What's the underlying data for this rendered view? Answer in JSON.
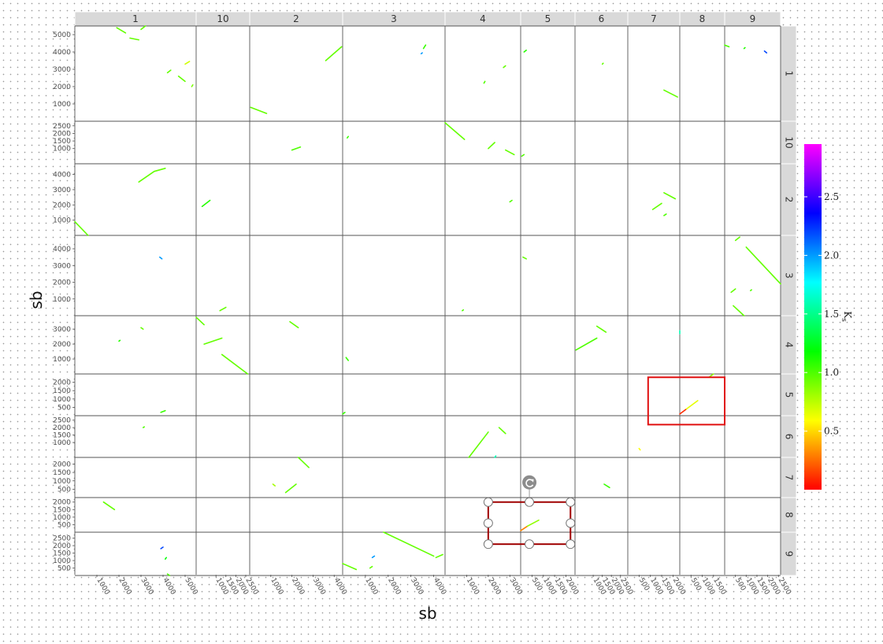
{
  "chart_data": {
    "type": "scatter",
    "title": "",
    "xlabel": "sb",
    "ylabel": "sb",
    "grid": false,
    "legend_position": "right",
    "columns": [
      {
        "label": "1",
        "range": [
          0,
          5500
        ],
        "ticks": [
          1000,
          2000,
          3000,
          4000,
          5000
        ]
      },
      {
        "label": "10",
        "range": [
          0,
          2700
        ],
        "ticks": [
          1000,
          1500,
          2000,
          2500
        ]
      },
      {
        "label": "2",
        "range": [
          0,
          4400
        ],
        "ticks": [
          1000,
          2000,
          3000,
          4000
        ]
      },
      {
        "label": "3",
        "range": [
          0,
          4500
        ],
        "ticks": [
          1000,
          2000,
          3000,
          4000
        ]
      },
      {
        "label": "4",
        "range": [
          0,
          3500
        ],
        "ticks": [
          1000,
          2000,
          3000
        ]
      },
      {
        "label": "5",
        "range": [
          0,
          2400
        ],
        "ticks": [
          500,
          1000,
          1500,
          2000
        ]
      },
      {
        "label": "6",
        "range": [
          0,
          2900
        ],
        "ticks": [
          1000,
          1500,
          2000,
          2500
        ]
      },
      {
        "label": "7",
        "range": [
          0,
          2300
        ],
        "ticks": [
          500,
          1000,
          1500,
          2000
        ]
      },
      {
        "label": "8",
        "range": [
          0,
          2000
        ],
        "ticks": [
          500,
          1000,
          1500,
          2000
        ]
      },
      {
        "label": "9",
        "range": [
          0,
          2600
        ],
        "ticks": [
          500,
          1000,
          1500,
          2000,
          2500
        ]
      }
    ],
    "rows": [
      {
        "label": "1",
        "range": [
          0,
          5500
        ],
        "ticks": [
          1000,
          2000,
          3000,
          4000,
          5000
        ]
      },
      {
        "label": "10",
        "range": [
          0,
          2800
        ],
        "ticks": [
          1000,
          1500,
          2000,
          2500
        ]
      },
      {
        "label": "2",
        "range": [
          0,
          4700
        ],
        "ticks": [
          1000,
          2000,
          3000,
          4000
        ]
      },
      {
        "label": "3",
        "range": [
          0,
          4800
        ],
        "ticks": [
          1000,
          2000,
          3000,
          4000
        ]
      },
      {
        "label": "4",
        "range": [
          0,
          3900
        ],
        "ticks": [
          1000,
          2000,
          3000
        ]
      },
      {
        "label": "5",
        "range": [
          0,
          2500
        ],
        "ticks": [
          500,
          1000,
          1500,
          2000
        ]
      },
      {
        "label": "6",
        "range": [
          0,
          2800
        ],
        "ticks": [
          1000,
          1500,
          2000,
          2500
        ]
      },
      {
        "label": "7",
        "range": [
          0,
          2400
        ],
        "ticks": [
          500,
          1000,
          1500,
          2000
        ]
      },
      {
        "label": "8",
        "range": [
          0,
          2300
        ],
        "ticks": [
          500,
          1000,
          1500,
          2000
        ]
      },
      {
        "label": "9",
        "range": [
          0,
          2900
        ],
        "ticks": [
          500,
          1000,
          1500,
          2000,
          2500
        ]
      }
    ],
    "legend": {
      "title": "Ks",
      "ticks": [
        0.5,
        1.0,
        1.5,
        2.0,
        2.5
      ],
      "tick_labels": [
        "0.5",
        "1.0",
        "1.5",
        "2.0",
        "2.5"
      ],
      "range": [
        0,
        2.95
      ],
      "colors": [
        "#ff0000",
        "#ffff00",
        "#00ff00",
        "#00ffff",
        "#0000ff",
        "#ff00ff"
      ]
    },
    "segments": [
      {
        "col": "1",
        "row": "1",
        "x0": 1900,
        "y0": 5400,
        "x1": 2300,
        "y1": 5100,
        "ks": 0.95
      },
      {
        "col": "1",
        "row": "1",
        "x0": 2500,
        "y0": 4800,
        "x1": 2900,
        "y1": 4700,
        "ks": 0.95
      },
      {
        "col": "1",
        "row": "1",
        "x0": 3000,
        "y0": 5300,
        "x1": 3200,
        "y1": 5500,
        "ks": 0.95
      },
      {
        "col": "1",
        "row": "1",
        "x0": 4200,
        "y0": 2800,
        "x1": 4350,
        "y1": 2950,
        "ks": 0.95
      },
      {
        "col": "1",
        "row": "1",
        "x0": 4700,
        "y0": 2600,
        "x1": 5000,
        "y1": 2300,
        "ks": 0.95
      },
      {
        "col": "1",
        "row": "1",
        "x0": 5000,
        "y0": 3300,
        "x1": 5200,
        "y1": 3450,
        "ks": 0.7
      },
      {
        "col": "1",
        "row": "1",
        "x0": 5300,
        "y0": 2000,
        "x1": 5350,
        "y1": 2100,
        "ks": 0.9
      },
      {
        "col": "2",
        "row": "1",
        "x0": 50,
        "y0": 800,
        "x1": 800,
        "y1": 450,
        "ks": 0.95
      },
      {
        "col": "2",
        "row": "1",
        "x0": 3600,
        "y0": 3500,
        "x1": 4350,
        "y1": 4300,
        "ks": 0.95
      },
      {
        "col": "3",
        "row": "1",
        "x0": 3550,
        "y0": 4200,
        "x1": 3650,
        "y1": 4400,
        "ks": 1.05
      },
      {
        "col": "3",
        "row": "1",
        "x0": 3450,
        "y0": 3900,
        "x1": 3500,
        "y1": 3950,
        "ks": 2.0
      },
      {
        "col": "4",
        "row": "1",
        "x0": 1800,
        "y0": 2200,
        "x1": 1850,
        "y1": 2300,
        "ks": 1.0
      },
      {
        "col": "4",
        "row": "1",
        "x0": 2700,
        "y0": 3100,
        "x1": 2800,
        "y1": 3200,
        "ks": 0.95
      },
      {
        "col": "5",
        "row": "1",
        "x0": 150,
        "y0": 4000,
        "x1": 250,
        "y1": 4100,
        "ks": 1.1
      },
      {
        "col": "6",
        "row": "1",
        "x0": 1500,
        "y0": 3300,
        "x1": 1550,
        "y1": 3350,
        "ks": 0.95
      },
      {
        "col": "7",
        "row": "1",
        "x0": 1600,
        "y0": 1800,
        "x1": 2200,
        "y1": 1400,
        "ks": 0.95
      },
      {
        "col": "9",
        "row": "1",
        "x0": 0,
        "y0": 4400,
        "x1": 200,
        "y1": 4300,
        "ks": 1.0
      },
      {
        "col": "9",
        "row": "1",
        "x0": 900,
        "y0": 4200,
        "x1": 950,
        "y1": 4250,
        "ks": 1.1
      },
      {
        "col": "9",
        "row": "1",
        "x0": 1850,
        "y0": 4050,
        "x1": 1950,
        "y1": 3950,
        "ks": 2.2
      },
      {
        "col": "2",
        "row": "10",
        "x0": 2000,
        "y0": 900,
        "x1": 2400,
        "y1": 1100,
        "ks": 1.0
      },
      {
        "col": "3",
        "row": "10",
        "x0": 200,
        "y0": 1700,
        "x1": 250,
        "y1": 1800,
        "ks": 1.05
      },
      {
        "col": "4",
        "row": "10",
        "x0": 0,
        "y0": 2700,
        "x1": 900,
        "y1": 1600,
        "ks": 0.95
      },
      {
        "col": "4",
        "row": "10",
        "x0": 2000,
        "y0": 1000,
        "x1": 2300,
        "y1": 1400,
        "ks": 0.95
      },
      {
        "col": "4",
        "row": "10",
        "x0": 2800,
        "y0": 900,
        "x1": 3200,
        "y1": 600,
        "ks": 0.95
      },
      {
        "col": "5",
        "row": "10",
        "x0": 50,
        "y0": 500,
        "x1": 150,
        "y1": 600,
        "ks": 1.0
      },
      {
        "col": "1",
        "row": "2",
        "x0": 2900,
        "y0": 3500,
        "x1": 3600,
        "y1": 4200,
        "ks": 0.95
      },
      {
        "col": "1",
        "row": "2",
        "x0": 3600,
        "y0": 4200,
        "x1": 4100,
        "y1": 4400,
        "ks": 0.95
      },
      {
        "col": "10",
        "row": "2",
        "x0": 300,
        "y0": 1900,
        "x1": 700,
        "y1": 2300,
        "ks": 1.1
      },
      {
        "col": "1",
        "row": "2",
        "x0": 0,
        "y0": 900,
        "x1": 600,
        "y1": 0,
        "ks": 0.95
      },
      {
        "col": "4",
        "row": "2",
        "x0": 3000,
        "y0": 2200,
        "x1": 3100,
        "y1": 2300,
        "ks": 1.0
      },
      {
        "col": "7",
        "row": "2",
        "x0": 1100,
        "y0": 1700,
        "x1": 1500,
        "y1": 2100,
        "ks": 0.95
      },
      {
        "col": "7",
        "row": "2",
        "x0": 1600,
        "y0": 2800,
        "x1": 2100,
        "y1": 2400,
        "ks": 0.95
      },
      {
        "col": "7",
        "row": "2",
        "x0": 1600,
        "y0": 1300,
        "x1": 1700,
        "y1": 1400,
        "ks": 1.0
      },
      {
        "col": "1",
        "row": "3",
        "x0": 3850,
        "y0": 3500,
        "x1": 3950,
        "y1": 3400,
        "ks": 2.0
      },
      {
        "col": "10",
        "row": "3",
        "x0": 1200,
        "y0": 300,
        "x1": 1500,
        "y1": 500,
        "ks": 0.95
      },
      {
        "col": "4",
        "row": "3",
        "x0": 800,
        "y0": 300,
        "x1": 850,
        "y1": 350,
        "ks": 1.0
      },
      {
        "col": "5",
        "row": "3",
        "x0": 100,
        "y0": 3500,
        "x1": 250,
        "y1": 3400,
        "ks": 0.95
      },
      {
        "col": "9",
        "row": "3",
        "x0": 500,
        "y0": 4500,
        "x1": 700,
        "y1": 4700,
        "ks": 0.95
      },
      {
        "col": "9",
        "row": "3",
        "x0": 1000,
        "y0": 4100,
        "x1": 2600,
        "y1": 1900,
        "ks": 0.95
      },
      {
        "col": "9",
        "row": "3",
        "x0": 300,
        "y0": 1400,
        "x1": 500,
        "y1": 1600,
        "ks": 0.95
      },
      {
        "col": "9",
        "row": "3",
        "x0": 400,
        "y0": 600,
        "x1": 900,
        "y1": 0,
        "ks": 0.95
      },
      {
        "col": "9",
        "row": "3",
        "x0": 1200,
        "y0": 1500,
        "x1": 1250,
        "y1": 1550,
        "ks": 1.0
      },
      {
        "col": "1",
        "row": "4",
        "x0": 3000,
        "y0": 3100,
        "x1": 3100,
        "y1": 3000,
        "ks": 0.95
      },
      {
        "col": "1",
        "row": "4",
        "x0": 2000,
        "y0": 2200,
        "x1": 2050,
        "y1": 2250,
        "ks": 1.1
      },
      {
        "col": "10",
        "row": "4",
        "x0": 0,
        "y0": 3800,
        "x1": 400,
        "y1": 3300,
        "ks": 0.95
      },
      {
        "col": "10",
        "row": "4",
        "x0": 400,
        "y0": 2000,
        "x1": 1300,
        "y1": 2400,
        "ks": 0.95
      },
      {
        "col": "10",
        "row": "4",
        "x0": 1300,
        "y0": 1300,
        "x1": 2600,
        "y1": 0,
        "ks": 0.95
      },
      {
        "col": "2",
        "row": "4",
        "x0": 1900,
        "y0": 3500,
        "x1": 2300,
        "y1": 3100,
        "ks": 0.95
      },
      {
        "col": "3",
        "row": "4",
        "x0": 150,
        "y0": 1100,
        "x1": 250,
        "y1": 900,
        "ks": 1.05
      },
      {
        "col": "6",
        "row": "4",
        "x0": 50,
        "y0": 1600,
        "x1": 1200,
        "y1": 2400,
        "ks": 1.0
      },
      {
        "col": "6",
        "row": "4",
        "x0": 1200,
        "y0": 3200,
        "x1": 1700,
        "y1": 2800,
        "ks": 0.95
      },
      {
        "col": "7",
        "row": "4",
        "x0": 2300,
        "y0": 2700,
        "x1": 2300,
        "y1": 2900,
        "ks": 1.6
      },
      {
        "col": "1",
        "row": "5",
        "x0": 3900,
        "y0": 200,
        "x1": 4100,
        "y1": 300,
        "ks": 1.05
      },
      {
        "col": "3",
        "row": "5",
        "x0": 0,
        "y0": 100,
        "x1": 100,
        "y1": 200,
        "ks": 1.05
      },
      {
        "col": "8",
        "row": "5",
        "x0": 0,
        "y0": 100,
        "x1": 300,
        "y1": 400,
        "ks": 0.1
      },
      {
        "col": "8",
        "row": "5",
        "x0": 300,
        "y0": 400,
        "x1": 800,
        "y1": 900,
        "ks": 0.65
      },
      {
        "col": "8",
        "row": "5",
        "x0": 1300,
        "y0": 2300,
        "x1": 1500,
        "y1": 2500,
        "ks": 0.85
      },
      {
        "col": "7",
        "row": "6",
        "x0": 500,
        "y0": 600,
        "x1": 550,
        "y1": 500,
        "ks": 0.6
      },
      {
        "col": "1",
        "row": "6",
        "x0": 3100,
        "y0": 2000,
        "x1": 3150,
        "y1": 2050,
        "ks": 1.0
      },
      {
        "col": "4",
        "row": "6",
        "x0": 1100,
        "y0": 0,
        "x1": 2000,
        "y1": 1700,
        "ks": 0.95
      },
      {
        "col": "4",
        "row": "6",
        "x0": 2500,
        "y0": 2000,
        "x1": 2800,
        "y1": 1600,
        "ks": 0.95
      },
      {
        "col": "4",
        "row": "6",
        "x0": 2300,
        "y0": 0,
        "x1": 2350,
        "y1": 100,
        "ks": 1.6
      },
      {
        "col": "2",
        "row": "7",
        "x0": 1100,
        "y0": 800,
        "x1": 1200,
        "y1": 700,
        "ks": 0.8
      },
      {
        "col": "2",
        "row": "7",
        "x0": 1700,
        "y0": 300,
        "x1": 2200,
        "y1": 800,
        "ks": 0.95
      },
      {
        "col": "2",
        "row": "7",
        "x0": 2300,
        "y0": 2400,
        "x1": 2800,
        "y1": 1800,
        "ks": 0.95
      },
      {
        "col": "6",
        "row": "7",
        "x0": 1600,
        "y0": 800,
        "x1": 1900,
        "y1": 600,
        "ks": 1.05
      },
      {
        "col": "1",
        "row": "8",
        "x0": 1300,
        "y0": 2000,
        "x1": 1800,
        "y1": 1500,
        "ks": 0.95
      },
      {
        "col": "5",
        "row": "8",
        "x0": 0,
        "y0": 100,
        "x1": 300,
        "y1": 400,
        "ks": 0.3
      },
      {
        "col": "5",
        "row": "8",
        "x0": 300,
        "y0": 400,
        "x1": 800,
        "y1": 800,
        "ks": 0.85
      },
      {
        "col": "1",
        "row": "9",
        "x0": 3900,
        "y0": 1800,
        "x1": 4000,
        "y1": 1900,
        "ks": 2.2
      },
      {
        "col": "1",
        "row": "9",
        "x0": 4100,
        "y0": 1100,
        "x1": 4150,
        "y1": 1200,
        "ks": 1.2
      },
      {
        "col": "1",
        "row": "9",
        "x0": 4200,
        "y0": 100,
        "x1": 4300,
        "y1": 0,
        "ks": 1.0
      },
      {
        "col": "3",
        "row": "9",
        "x0": 0,
        "y0": 800,
        "x1": 600,
        "y1": 400,
        "ks": 0.95
      },
      {
        "col": "3",
        "row": "9",
        "x0": 1300,
        "y0": 1200,
        "x1": 1400,
        "y1": 1300,
        "ks": 2.0
      },
      {
        "col": "3",
        "row": "9",
        "x0": 1200,
        "y0": 500,
        "x1": 1300,
        "y1": 600,
        "ks": 0.95
      },
      {
        "col": "3",
        "row": "9",
        "x0": 1800,
        "y0": 2900,
        "x1": 4000,
        "y1": 1300,
        "ks": 0.95
      },
      {
        "col": "3",
        "row": "9",
        "x0": 4100,
        "y0": 1200,
        "x1": 4400,
        "y1": 1400,
        "ks": 0.95
      }
    ],
    "annotations": [
      {
        "type": "rectangle",
        "color": "#e01010",
        "x0_col": "7",
        "x0": 900,
        "x1_col": "8",
        "x1": 2000,
        "y0_row": "5",
        "y0": 2300,
        "y1_row": "6",
        "y1": 2200
      },
      {
        "type": "selected-rectangle",
        "color": "#a00000",
        "x0_col": "4",
        "x0": 2000,
        "x1_col": "5",
        "x1": 2200,
        "y0_row": "8",
        "y0": 2000,
        "y1_row": "9",
        "y1": 2100
      }
    ]
  }
}
